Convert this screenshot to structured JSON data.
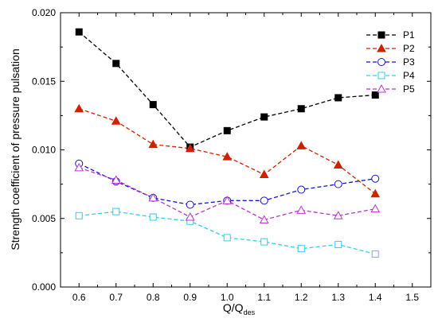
{
  "chart_data": {
    "type": "line",
    "title": "",
    "xlabel": "Q/Q",
    "xlabel_sub": "des",
    "ylabel": "Strength coefficient of pressure pulsation",
    "xlim": [
      0.55,
      1.55
    ],
    "ylim": [
      0.0,
      0.02
    ],
    "xticks": [
      "0.6",
      "0.7",
      "0.8",
      "0.9",
      "1.0",
      "1.1",
      "1.2",
      "1.3",
      "1.4",
      "1.5"
    ],
    "yticks": [
      "0.000",
      "0.005",
      "0.010",
      "0.015",
      "0.020"
    ],
    "grid": false,
    "legend_position": "top-right",
    "x": [
      0.6,
      0.7,
      0.8,
      0.9,
      1.0,
      1.1,
      1.2,
      1.3,
      1.4
    ],
    "series": [
      {
        "name": "P1",
        "color": "#000000",
        "marker": "square-filled",
        "values": [
          0.0186,
          0.0163,
          0.0133,
          0.0102,
          0.0114,
          0.0124,
          0.013,
          0.0138,
          0.014
        ]
      },
      {
        "name": "P2",
        "color": "#cc2200",
        "marker": "triangle-filled",
        "values": [
          0.013,
          0.0121,
          0.0104,
          0.0101,
          0.0095,
          0.0082,
          0.0103,
          0.0089,
          0.0068
        ]
      },
      {
        "name": "P3",
        "color": "#1515cc",
        "marker": "circle-open",
        "values": [
          0.009,
          0.0077,
          0.0065,
          0.006,
          0.0063,
          0.0063,
          0.0071,
          0.0075,
          0.0079
        ]
      },
      {
        "name": "P4",
        "color": "#33ccee",
        "marker": "square-open",
        "values": [
          0.0052,
          0.0055,
          0.0051,
          0.0048,
          0.0036,
          0.0033,
          0.0028,
          0.0031,
          0.0024
        ]
      },
      {
        "name": "P5",
        "color": "#bb33cc",
        "marker": "triangle-open",
        "values": [
          0.0087,
          0.0078,
          0.0065,
          0.0051,
          0.0063,
          0.0049,
          0.0056,
          0.0052,
          0.0057
        ]
      }
    ]
  }
}
